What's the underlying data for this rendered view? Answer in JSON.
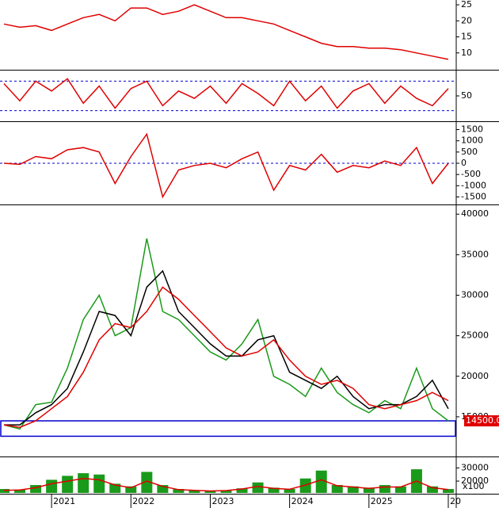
{
  "chart_data": [
    {
      "type": "line",
      "ylim": [
        5,
        26.5
      ],
      "yticks": [
        10,
        15,
        20,
        25
      ],
      "x": [
        2020.4,
        2020.6,
        2020.8,
        2021.0,
        2021.2,
        2021.4,
        2021.6,
        2021.8,
        2022.0,
        2022.2,
        2022.4,
        2022.6,
        2022.8,
        2023.0,
        2023.2,
        2023.4,
        2023.6,
        2023.8,
        2024.0,
        2024.2,
        2024.4,
        2024.6,
        2024.8,
        2025.0,
        2025.2,
        2025.4,
        2025.6,
        2025.8,
        2026.0
      ],
      "series": [
        {
          "color": "#e00000",
          "values": [
            19,
            18,
            18.5,
            17,
            19,
            21,
            22,
            20,
            24,
            24,
            22,
            23,
            25,
            23,
            21,
            21,
            20,
            19,
            17,
            15,
            13,
            12,
            12,
            11.5,
            11.5,
            11,
            10,
            9,
            8
          ]
        }
      ]
    },
    {
      "type": "line",
      "ylim": [
        0,
        100
      ],
      "yticks": [
        50
      ],
      "ref_lines": [
        20,
        80
      ],
      "x": [
        2020.4,
        2020.6,
        2020.8,
        2021.0,
        2021.2,
        2021.4,
        2021.6,
        2021.8,
        2022.0,
        2022.2,
        2022.4,
        2022.6,
        2022.8,
        2023.0,
        2023.2,
        2023.4,
        2023.6,
        2023.8,
        2024.0,
        2024.2,
        2024.4,
        2024.6,
        2024.8,
        2025.0,
        2025.2,
        2025.4,
        2025.6,
        2025.8,
        2026.0
      ],
      "series": [
        {
          "color": "#e00000",
          "values": [
            75,
            40,
            80,
            60,
            85,
            35,
            70,
            25,
            65,
            80,
            30,
            60,
            45,
            70,
            35,
            75,
            55,
            30,
            80,
            40,
            70,
            25,
            60,
            75,
            35,
            70,
            45,
            30,
            65
          ]
        }
      ]
    },
    {
      "type": "line",
      "ylim": [
        -1800,
        1800
      ],
      "yticks": [
        1500,
        1000,
        500,
        0,
        -500,
        -1000,
        -1500
      ],
      "ref_lines": [
        0
      ],
      "x": [
        2020.4,
        2020.6,
        2020.8,
        2021.0,
        2021.2,
        2021.4,
        2021.6,
        2021.8,
        2022.0,
        2022.2,
        2022.4,
        2022.6,
        2022.8,
        2023.0,
        2023.2,
        2023.4,
        2023.6,
        2023.8,
        2024.0,
        2024.2,
        2024.4,
        2024.6,
        2024.8,
        2025.0,
        2025.2,
        2025.4,
        2025.6,
        2025.8,
        2026.0
      ],
      "series": [
        {
          "color": "#e00000",
          "values": [
            0,
            -50,
            300,
            200,
            600,
            700,
            500,
            -900,
            300,
            1300,
            -1500,
            -300,
            -100,
            0,
            -200,
            200,
            500,
            -1200,
            -100,
            -300,
            400,
            -400,
            -100,
            -200,
            100,
            -100,
            700,
            -900,
            0
          ]
        }
      ]
    },
    {
      "type": "line",
      "ylim": [
        10200,
        41000
      ],
      "yticks": [
        15000,
        20000,
        25000,
        30000,
        35000,
        40000
      ],
      "zone": [
        12600,
        14500
      ],
      "price_marker": {
        "value": 14500,
        "label": "14500.00"
      },
      "x": [
        2020.4,
        2020.6,
        2020.8,
        2021.0,
        2021.2,
        2021.4,
        2021.6,
        2021.8,
        2022.0,
        2022.2,
        2022.4,
        2022.6,
        2022.8,
        2023.0,
        2023.2,
        2023.4,
        2023.6,
        2023.8,
        2024.0,
        2024.2,
        2024.4,
        2024.6,
        2024.8,
        2025.0,
        2025.2,
        2025.4,
        2025.6,
        2025.8,
        2026.0
      ],
      "series": [
        {
          "color": "#1a9a1a",
          "values": [
            14000,
            13500,
            16500,
            16800,
            21000,
            27000,
            30000,
            25000,
            26000,
            37000,
            28000,
            27000,
            25000,
            23000,
            22000,
            24000,
            27000,
            20000,
            19000,
            17500,
            21000,
            18000,
            16500,
            15500,
            17000,
            16000,
            21000,
            16000,
            14500
          ]
        },
        {
          "color": "#000000",
          "values": [
            14000,
            14000,
            15500,
            16500,
            18500,
            23000,
            28000,
            27500,
            25000,
            31000,
            33000,
            28000,
            26000,
            24000,
            22500,
            22500,
            24500,
            25000,
            20500,
            19500,
            18500,
            20000,
            17500,
            16000,
            16500,
            16500,
            17500,
            19500,
            16000
          ]
        },
        {
          "color": "#e00000",
          "values": [
            14000,
            13700,
            14500,
            16000,
            17500,
            20500,
            24500,
            26500,
            26000,
            28000,
            31000,
            29500,
            27500,
            25500,
            23500,
            22500,
            23000,
            24500,
            22000,
            20000,
            19000,
            19500,
            18500,
            16500,
            16000,
            16500,
            17000,
            18000,
            17000
          ]
        }
      ]
    },
    {
      "type": "volume",
      "ylim": [
        11000,
        37500
      ],
      "yticks": [
        20000,
        30000
      ],
      "unit_label": "x100",
      "xlim": [
        2020.35,
        2026.1
      ],
      "xticks": [
        2021,
        2022,
        2023,
        2024,
        2025,
        {
          "value": 2026,
          "label": "20"
        }
      ],
      "x": [
        2020.4,
        2020.6,
        2020.8,
        2021.0,
        2021.2,
        2021.4,
        2021.6,
        2021.8,
        2022.0,
        2022.2,
        2022.4,
        2022.6,
        2022.8,
        2023.0,
        2023.2,
        2023.4,
        2023.6,
        2023.8,
        2024.0,
        2024.2,
        2024.4,
        2024.6,
        2024.8,
        2025.0,
        2025.2,
        2025.4,
        2025.6,
        2025.8,
        2026.0
      ],
      "series": [
        {
          "kind": "bar",
          "color": "#1a9a1a",
          "values": [
            14000,
            13500,
            17000,
            21000,
            24000,
            26000,
            25000,
            18000,
            16000,
            27000,
            17000,
            14000,
            13000,
            12500,
            13000,
            14500,
            19000,
            15000,
            14000,
            22000,
            28000,
            17000,
            16000,
            15000,
            17000,
            16000,
            29000,
            16000,
            14000
          ]
        },
        {
          "kind": "line",
          "color": "#e00000",
          "values": [
            13000,
            13200,
            15000,
            18000,
            20000,
            22000,
            21000,
            17000,
            15000,
            20000,
            16000,
            13500,
            13000,
            12500,
            12800,
            14000,
            16000,
            14500,
            13800,
            17000,
            21000,
            16500,
            15500,
            14500,
            15500,
            15500,
            20000,
            15000,
            13500
          ]
        }
      ]
    }
  ]
}
